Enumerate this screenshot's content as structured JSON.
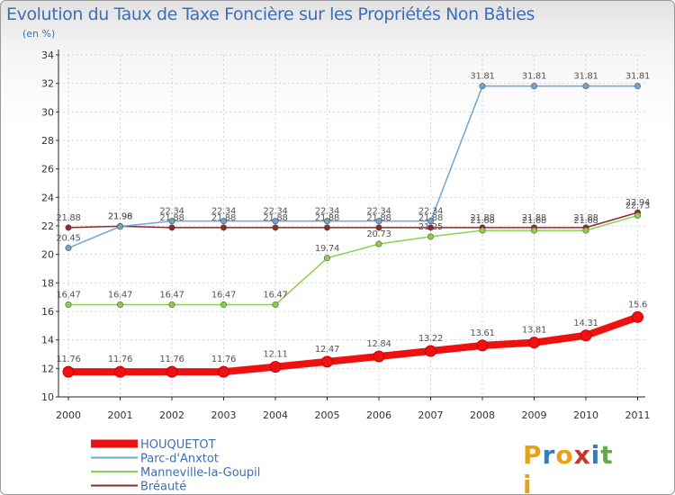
{
  "title": "Evolution du Taux de Taxe Foncière sur les Propriétés Non Bâties",
  "subtitle": "(en %)",
  "logo": {
    "letters": [
      "P",
      "r",
      "o",
      "x",
      "i",
      "t",
      "i"
    ],
    "colors": [
      "#e8a21a",
      "#2f7ec2",
      "#e8a21a",
      "#c0392b",
      "#2f7ec2",
      "#6aa84f",
      "#e8a21a"
    ]
  },
  "chart_data": {
    "type": "line",
    "x": [
      "2000",
      "2001",
      "2002",
      "2003",
      "2004",
      "2005",
      "2006",
      "2007",
      "2008",
      "2009",
      "2010",
      "2011"
    ],
    "ylim": [
      10,
      34
    ],
    "yticks": [
      10,
      12,
      14,
      16,
      18,
      20,
      22,
      24,
      26,
      28,
      30,
      32,
      34
    ],
    "grid": true,
    "legend_placement": "bottom-left",
    "series": [
      {
        "name": "Bréauté",
        "color": "#8b2a2a",
        "values": [
          21.88,
          21.98,
          21.88,
          21.88,
          21.88,
          21.88,
          21.88,
          21.88,
          21.88,
          21.88,
          21.88,
          22.94
        ],
        "labels": [
          "21.88",
          "21.98",
          "21.88",
          "21.88",
          "21.88",
          "21.88",
          "21.88",
          "21.88",
          "21.88",
          "21.88",
          "21.88",
          "22.94"
        ]
      },
      {
        "name": "Manneville-la-Goupil",
        "color": "#8ad04e",
        "values": [
          16.47,
          16.47,
          16.47,
          16.47,
          16.47,
          19.74,
          20.73,
          21.25,
          21.68,
          21.68,
          21.68,
          22.73
        ],
        "labels": [
          "16.47",
          "16.47",
          "16.47",
          "16.47",
          "16.47",
          "19.74",
          "20.73",
          "21.25",
          "21.68",
          "21.68",
          "21.68",
          "22.73"
        ]
      },
      {
        "name": "Parc-d'Anxtot",
        "color": "#6fa4d4",
        "values": [
          20.45,
          21.96,
          22.34,
          22.34,
          22.34,
          22.34,
          22.34,
          22.34,
          31.81,
          31.81,
          31.81,
          31.81
        ],
        "labels": [
          "20.45",
          "21.96",
          "22.34",
          "22.34",
          "22.34",
          "22.34",
          "22.34",
          "22.34",
          "31.81",
          "31.81",
          "31.81",
          "31.81"
        ]
      },
      {
        "name": "HOUQUETOT",
        "color": "#ee1111",
        "values": [
          11.76,
          11.76,
          11.76,
          11.76,
          12.11,
          12.47,
          12.84,
          13.22,
          13.61,
          13.81,
          14.31,
          15.6
        ],
        "labels": [
          "11.76",
          "11.76",
          "11.76",
          "11.76",
          "12.11",
          "12.47",
          "12.84",
          "13.22",
          "13.61",
          "13.81",
          "14.31",
          "15.6"
        ]
      }
    ],
    "legend": [
      "HOUQUETOT",
      "Parc-d'Anxtot",
      "Manneville-la-Goupil",
      "Bréauté"
    ]
  }
}
